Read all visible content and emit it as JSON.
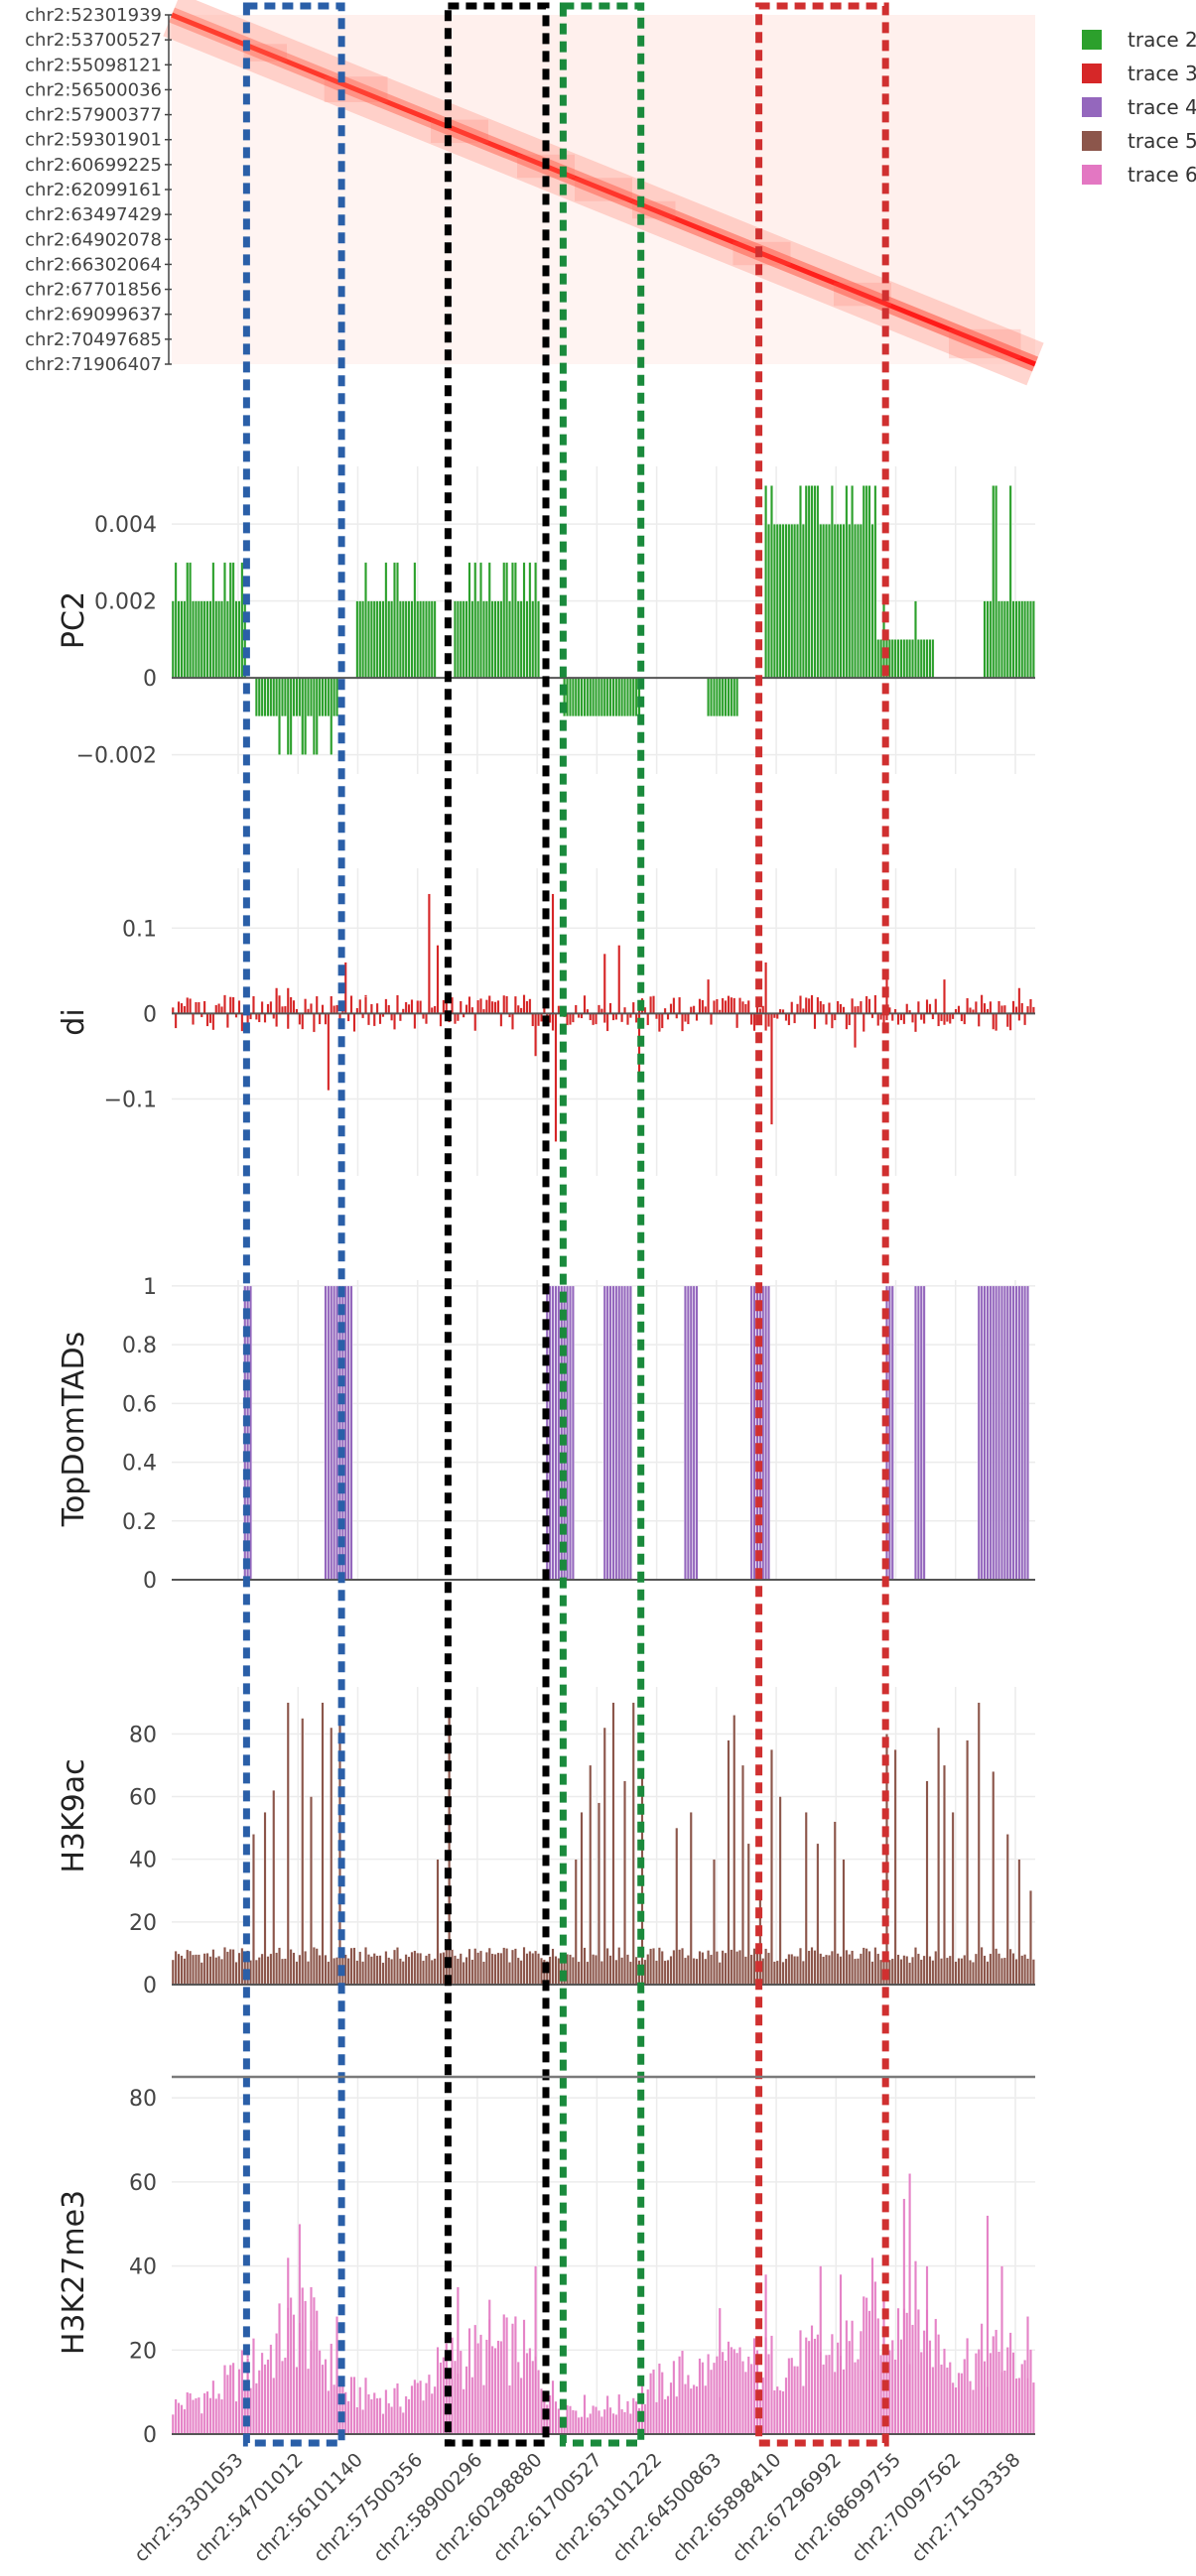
{
  "chart_data": {
    "type": "bar",
    "legend": {
      "placement": "top-right",
      "entries": [
        {
          "name": "trace 2",
          "color": "#2ca02c"
        },
        {
          "name": "trace 3",
          "color": "#d62728"
        },
        {
          "name": "trace 4",
          "color": "#9467bd"
        },
        {
          "name": "trace 5",
          "color": "#8c564b"
        },
        {
          "name": "trace 6",
          "color": "#e377c2"
        }
      ]
    },
    "heatmap": {
      "type": "heatmap",
      "colorscale": [
        "#ffffff",
        "#ff0000"
      ],
      "y_ticklabels": [
        "chr2:52301939",
        "chr2:53700527",
        "chr2:55098121",
        "chr2:56500036",
        "chr2:57900377",
        "chr2:59301901",
        "chr2:60699225",
        "chr2:62099161",
        "chr2:63497429",
        "chr2:64902078",
        "chr2:66302064",
        "chr2:67701856",
        "chr2:69099637",
        "chr2:70497685",
        "chr2:71906407"
      ]
    },
    "x_ticklabels": [
      "chr2:53301053",
      "chr2:54701012",
      "chr2:56101140",
      "chr2:57500356",
      "chr2:58900296",
      "chr2:60298880",
      "chr2:61700527",
      "chr2:63101222",
      "chr2:64500863",
      "chr2:65898410",
      "chr2:67296992",
      "chr2:68699755",
      "chr2:70097562",
      "chr2:71503358"
    ],
    "x_range_bins": [
      0,
      300
    ],
    "highlight_regions": [
      {
        "color": "#2a5fa8",
        "start_bin": 26,
        "end_bin": 59
      },
      {
        "color": "#000000",
        "start_bin": 96,
        "end_bin": 130
      },
      {
        "color": "#1a8a3c",
        "start_bin": 136,
        "end_bin": 163
      },
      {
        "color": "#d03030",
        "start_bin": 204,
        "end_bin": 248
      }
    ],
    "panels": [
      {
        "id": "pc2",
        "ylabel": "PC2",
        "type": "bar",
        "color": "#2ca02c",
        "ylim": [
          -0.0025,
          0.0055
        ],
        "yticks": [
          -0.002,
          0,
          0.002,
          0.004
        ],
        "yticklabels": [
          "−0.002",
          "0",
          "0.002",
          "0.004"
        ],
        "segments": [
          {
            "from": 0,
            "to": 26,
            "value": 0.002,
            "spike": 0.003
          },
          {
            "from": 29,
            "to": 58,
            "value": -0.001,
            "spike": -0.002
          },
          {
            "from": 64,
            "to": 92,
            "value": 0.002,
            "spike": 0.003
          },
          {
            "from": 98,
            "to": 128,
            "value": 0.002,
            "spike": 0.003
          },
          {
            "from": 136,
            "to": 163,
            "value": -0.001,
            "spike": -0.001
          },
          {
            "from": 186,
            "to": 197,
            "value": -0.001,
            "spike": -0.001
          },
          {
            "from": 206,
            "to": 245,
            "value": 0.004,
            "spike": 0.005
          },
          {
            "from": 245,
            "to": 265,
            "value": 0.001,
            "spike": 0.002
          },
          {
            "from": 282,
            "to": 300,
            "value": 0.002,
            "spike": 0.005
          }
        ]
      },
      {
        "id": "di",
        "ylabel": "di",
        "type": "bar",
        "color": "#d62728",
        "ylim": [
          -0.19,
          0.17
        ],
        "yticks": [
          -0.1,
          0,
          0.1
        ],
        "yticklabels": [
          "−0.1",
          "0",
          "0.1"
        ],
        "peaks": [
          [
            36,
            0.03
          ],
          [
            40,
            0.03
          ],
          [
            54,
            -0.09
          ],
          [
            60,
            0.06
          ],
          [
            67,
            0.02
          ],
          [
            89,
            0.14
          ],
          [
            92,
            0.08
          ],
          [
            126,
            -0.05
          ],
          [
            132,
            0.14
          ],
          [
            133,
            -0.15
          ],
          [
            150,
            0.07
          ],
          [
            155,
            0.08
          ],
          [
            162,
            -0.08
          ],
          [
            186,
            0.04
          ],
          [
            206,
            0.06
          ],
          [
            208,
            -0.13
          ],
          [
            237,
            -0.04
          ],
          [
            248,
            0.04
          ],
          [
            268,
            0.04
          ],
          [
            294,
            0.03
          ]
        ]
      },
      {
        "id": "tads",
        "ylabel": "TopDomTADs",
        "type": "bar",
        "color": "#9467bd",
        "ylim": [
          0,
          1.02
        ],
        "yticks": [
          0,
          0.2,
          0.4,
          0.6,
          0.8,
          1
        ],
        "yticklabels": [
          "0",
          "0.2",
          "0.4",
          "0.6",
          "0.8",
          "1"
        ],
        "blocks": [
          [
            25,
            28
          ],
          [
            53,
            63
          ],
          [
            130,
            140
          ],
          [
            150,
            160
          ],
          [
            178,
            183
          ],
          [
            201,
            208
          ],
          [
            248,
            251
          ],
          [
            258,
            262
          ],
          [
            280,
            298
          ]
        ]
      },
      {
        "id": "h3k9ac",
        "ylabel": "H3K9ac",
        "type": "bar",
        "color": "#8c564b",
        "ylim": [
          0,
          95
        ],
        "yticks": [
          0,
          20,
          40,
          60,
          80
        ],
        "yticklabels": [
          "0",
          "20",
          "40",
          "60",
          "80"
        ],
        "baseline": 7,
        "peaks": [
          [
            28,
            48
          ],
          [
            32,
            55
          ],
          [
            35,
            62
          ],
          [
            40,
            90
          ],
          [
            45,
            85
          ],
          [
            48,
            60
          ],
          [
            52,
            90
          ],
          [
            55,
            82
          ],
          [
            58,
            85
          ],
          [
            92,
            40
          ],
          [
            96,
            88
          ],
          [
            140,
            40
          ],
          [
            142,
            55
          ],
          [
            145,
            70
          ],
          [
            148,
            58
          ],
          [
            150,
            82
          ],
          [
            153,
            90
          ],
          [
            157,
            65
          ],
          [
            160,
            90
          ],
          [
            163,
            68
          ],
          [
            175,
            50
          ],
          [
            180,
            55
          ],
          [
            188,
            40
          ],
          [
            193,
            78
          ],
          [
            195,
            86
          ],
          [
            198,
            70
          ],
          [
            200,
            45
          ],
          [
            204,
            30
          ],
          [
            208,
            75
          ],
          [
            211,
            60
          ],
          [
            220,
            55
          ],
          [
            224,
            45
          ],
          [
            230,
            52
          ],
          [
            233,
            40
          ],
          [
            248,
            80
          ],
          [
            251,
            75
          ],
          [
            262,
            65
          ],
          [
            266,
            82
          ],
          [
            268,
            70
          ],
          [
            271,
            55
          ],
          [
            276,
            78
          ],
          [
            280,
            90
          ],
          [
            285,
            68
          ],
          [
            290,
            48
          ],
          [
            294,
            40
          ],
          [
            298,
            30
          ]
        ]
      },
      {
        "id": "h3k27me3",
        "ylabel": "H3K27me3",
        "type": "bar",
        "color": "#e377c2",
        "ylim": [
          0,
          85
        ],
        "yticks": [
          0,
          20,
          40,
          60,
          80
        ],
        "yticklabels": [
          "0",
          "20",
          "40",
          "60",
          "80"
        ],
        "regions": [
          [
            0,
            8
          ],
          [
            15,
            12
          ],
          [
            25,
            18
          ],
          [
            35,
            25
          ],
          [
            45,
            33
          ],
          [
            60,
            12
          ],
          [
            80,
            10
          ],
          [
            98,
            22
          ],
          [
            120,
            25
          ],
          [
            135,
            8
          ],
          [
            155,
            8
          ],
          [
            175,
            17
          ],
          [
            200,
            20
          ],
          [
            225,
            22
          ],
          [
            240,
            28
          ],
          [
            255,
            38
          ],
          [
            270,
            22
          ],
          [
            290,
            22
          ],
          [
            300,
            20
          ]
        ],
        "peaks": [
          [
            26,
            18
          ],
          [
            40,
            42
          ],
          [
            44,
            50
          ],
          [
            48,
            35
          ],
          [
            57,
            28
          ],
          [
            99,
            35
          ],
          [
            110,
            32
          ],
          [
            126,
            40
          ],
          [
            190,
            30
          ],
          [
            206,
            38
          ],
          [
            225,
            40
          ],
          [
            232,
            38
          ],
          [
            243,
            42
          ],
          [
            254,
            56
          ],
          [
            256,
            62
          ],
          [
            262,
            40
          ],
          [
            283,
            52
          ],
          [
            288,
            40
          ],
          [
            297,
            28
          ]
        ]
      }
    ]
  }
}
